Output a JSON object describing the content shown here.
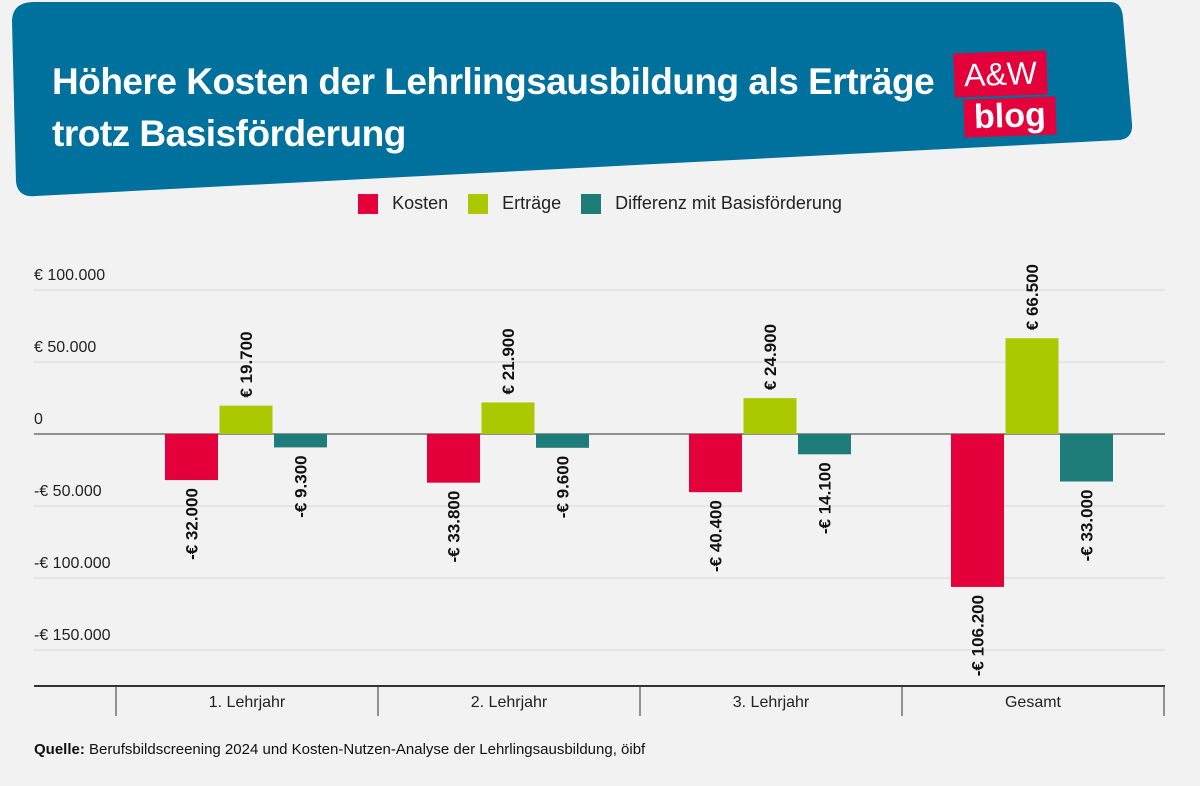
{
  "header": {
    "title": "Höhere Kosten der Lehrlingsausbildung als Erträge trotz Basisförderung",
    "banner_color": "#00709c",
    "logo_top": "A&W",
    "logo_bottom": "blog",
    "logo_color": "#e4003a"
  },
  "chart_data": {
    "type": "bar",
    "categories": [
      "1. Lehrjahr",
      "2. Lehrjahr",
      "3. Lehrjahr",
      "Gesamt"
    ],
    "series": [
      {
        "name": "Kosten",
        "color": "#e4003a",
        "values": [
          -32000,
          -33800,
          -40400,
          -106200
        ],
        "labels": [
          "-€ 32.000",
          "-€ 33.800",
          "-€ 40.400",
          "-€ 106.200"
        ]
      },
      {
        "name": "Erträge",
        "color": "#abc800",
        "values": [
          19700,
          21900,
          24900,
          66500
        ],
        "labels": [
          "€ 19.700",
          "€ 21.900",
          "€ 24.900",
          "€ 66.500"
        ]
      },
      {
        "name": "Differenz mit Basisförderung",
        "color": "#1e7d78",
        "values": [
          -9300,
          -9600,
          -14100,
          -33000
        ],
        "labels": [
          "-€ 9.300",
          "-€ 9.600",
          "-€ 14.100",
          "-€ 33.000"
        ]
      }
    ],
    "yticks": [
      100000,
      50000,
      0,
      -50000,
      -100000,
      -150000
    ],
    "ytick_labels": [
      "€ 100.000",
      "€ 50.000",
      "0",
      "-€ 50.000",
      "-€ 100.000",
      "-€ 150.000"
    ],
    "ylim": [
      -175000,
      100000
    ],
    "legend_position": "top-center",
    "grid": true
  },
  "source": {
    "label": "Quelle:",
    "text": " Berufsbildscreening 2024 und Kosten-Nutzen-Analyse der Lehrlingsausbildung, öibf"
  }
}
